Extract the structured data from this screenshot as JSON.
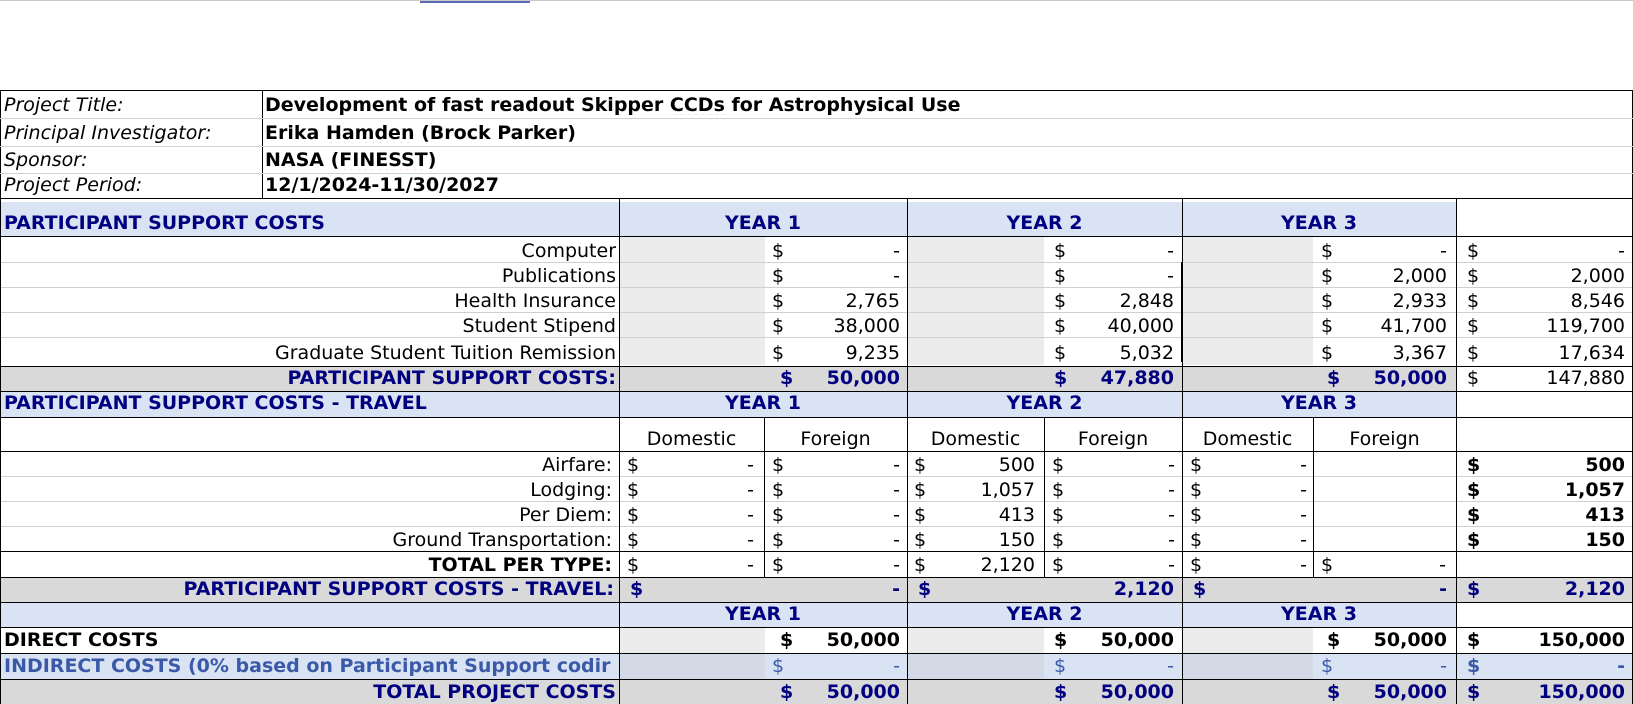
{
  "project": {
    "title_label": "Project Title:",
    "title_pre": "Development of fast readout Skipper ",
    "title_sq": "CCDs",
    "title_post": " for Astrophysical Use",
    "pi_label": "Principal Investigator:",
    "pi_pre": "Erika ",
    "pi_sq": "Hamden",
    "pi_post": " (Brock Parker)",
    "sponsor_label": "Sponsor:",
    "sponsor_pre": "NASA (",
    "sponsor_sq": "FINESST",
    "sponsor_post": ")",
    "period_label": "Project Period:",
    "period_value": "12/1/2024-11/30/2027"
  },
  "psc": {
    "header": "PARTICIPANT SUPPORT COSTS",
    "years": [
      "YEAR 1",
      "YEAR 2",
      "YEAR 3"
    ],
    "rows": [
      {
        "label": "Computer",
        "y1": "-",
        "y2": "-",
        "y3": "-",
        "total": "-"
      },
      {
        "label": "Publications",
        "y1": "-",
        "y2": "-",
        "y3": "2,000",
        "total": "2,000"
      },
      {
        "label": "Health Insurance",
        "y1": "2,765",
        "y2": "2,848",
        "y3": "2,933",
        "total": "8,546"
      },
      {
        "label": "Student Stipend",
        "y1": "38,000",
        "y2": "40,000",
        "y3": "41,700",
        "total": "119,700"
      },
      {
        "label": "Graduate Student Tuition Remission",
        "y1": "9,235",
        "y2": "5,032",
        "y3": "3,367",
        "total": "17,634"
      }
    ],
    "subtotal_label": "PARTICIPANT SUPPORT COSTS:",
    "subtotal": {
      "y1": "50,000",
      "y2": "47,880",
      "y3": "50,000",
      "total": "147,880"
    }
  },
  "travel": {
    "header": "PARTICIPANT SUPPORT COSTS - TRAVEL",
    "years": [
      "YEAR 1",
      "YEAR 2",
      "YEAR 3"
    ],
    "sub": [
      "Domestic",
      "Foreign",
      "Domestic",
      "Foreign",
      "Domestic",
      "Foreign"
    ],
    "rows": [
      {
        "label": "Airfare:",
        "v": [
          "-",
          "-",
          "500",
          "-",
          "-",
          ""
        ],
        "total": "500"
      },
      {
        "label": "Lodging:",
        "v": [
          "-",
          "-",
          "1,057",
          "-",
          "-",
          ""
        ],
        "total": "1,057"
      },
      {
        "label": "Per Diem:",
        "v": [
          "-",
          "-",
          "413",
          "-",
          "-",
          ""
        ],
        "total": "413"
      },
      {
        "label": "Ground Transportation:",
        "v": [
          "-",
          "-",
          "150",
          "-",
          "-",
          ""
        ],
        "total": "150"
      }
    ],
    "per_type_label": "TOTAL PER TYPE:",
    "per_type": [
      "-",
      "-",
      "2,120",
      "-",
      "-",
      "-"
    ],
    "subtotal_label": "PARTICIPANT SUPPORT COSTS - TRAVEL:",
    "subtotal": {
      "y1": "-",
      "y2": "2,120",
      "y3": "-",
      "total": "2,120"
    }
  },
  "summary": {
    "years": [
      "YEAR 1",
      "YEAR 2",
      "YEAR 3"
    ],
    "direct_label": "DIRECT COSTS",
    "direct": {
      "y1": "50,000",
      "y2": "50,000",
      "y3": "50,000",
      "total": "150,000"
    },
    "indirect_label": "INDIRECT COSTS (0% based on Participant Support codir",
    "indirect": {
      "y1": "-",
      "y2": "-",
      "y3": "-",
      "total": "-"
    },
    "total_label": "TOTAL PROJECT COSTS",
    "total": {
      "y1": "50,000",
      "y2": "50,000",
      "y3": "50,000",
      "total": "150,000"
    }
  },
  "currency": "$",
  "colors": {
    "navy": "#000080",
    "band_blue": "#dae3f3",
    "band_grey": "#d9d9d9",
    "cell_grey": "#ececec",
    "indirect_text": "#3a5aa8"
  }
}
